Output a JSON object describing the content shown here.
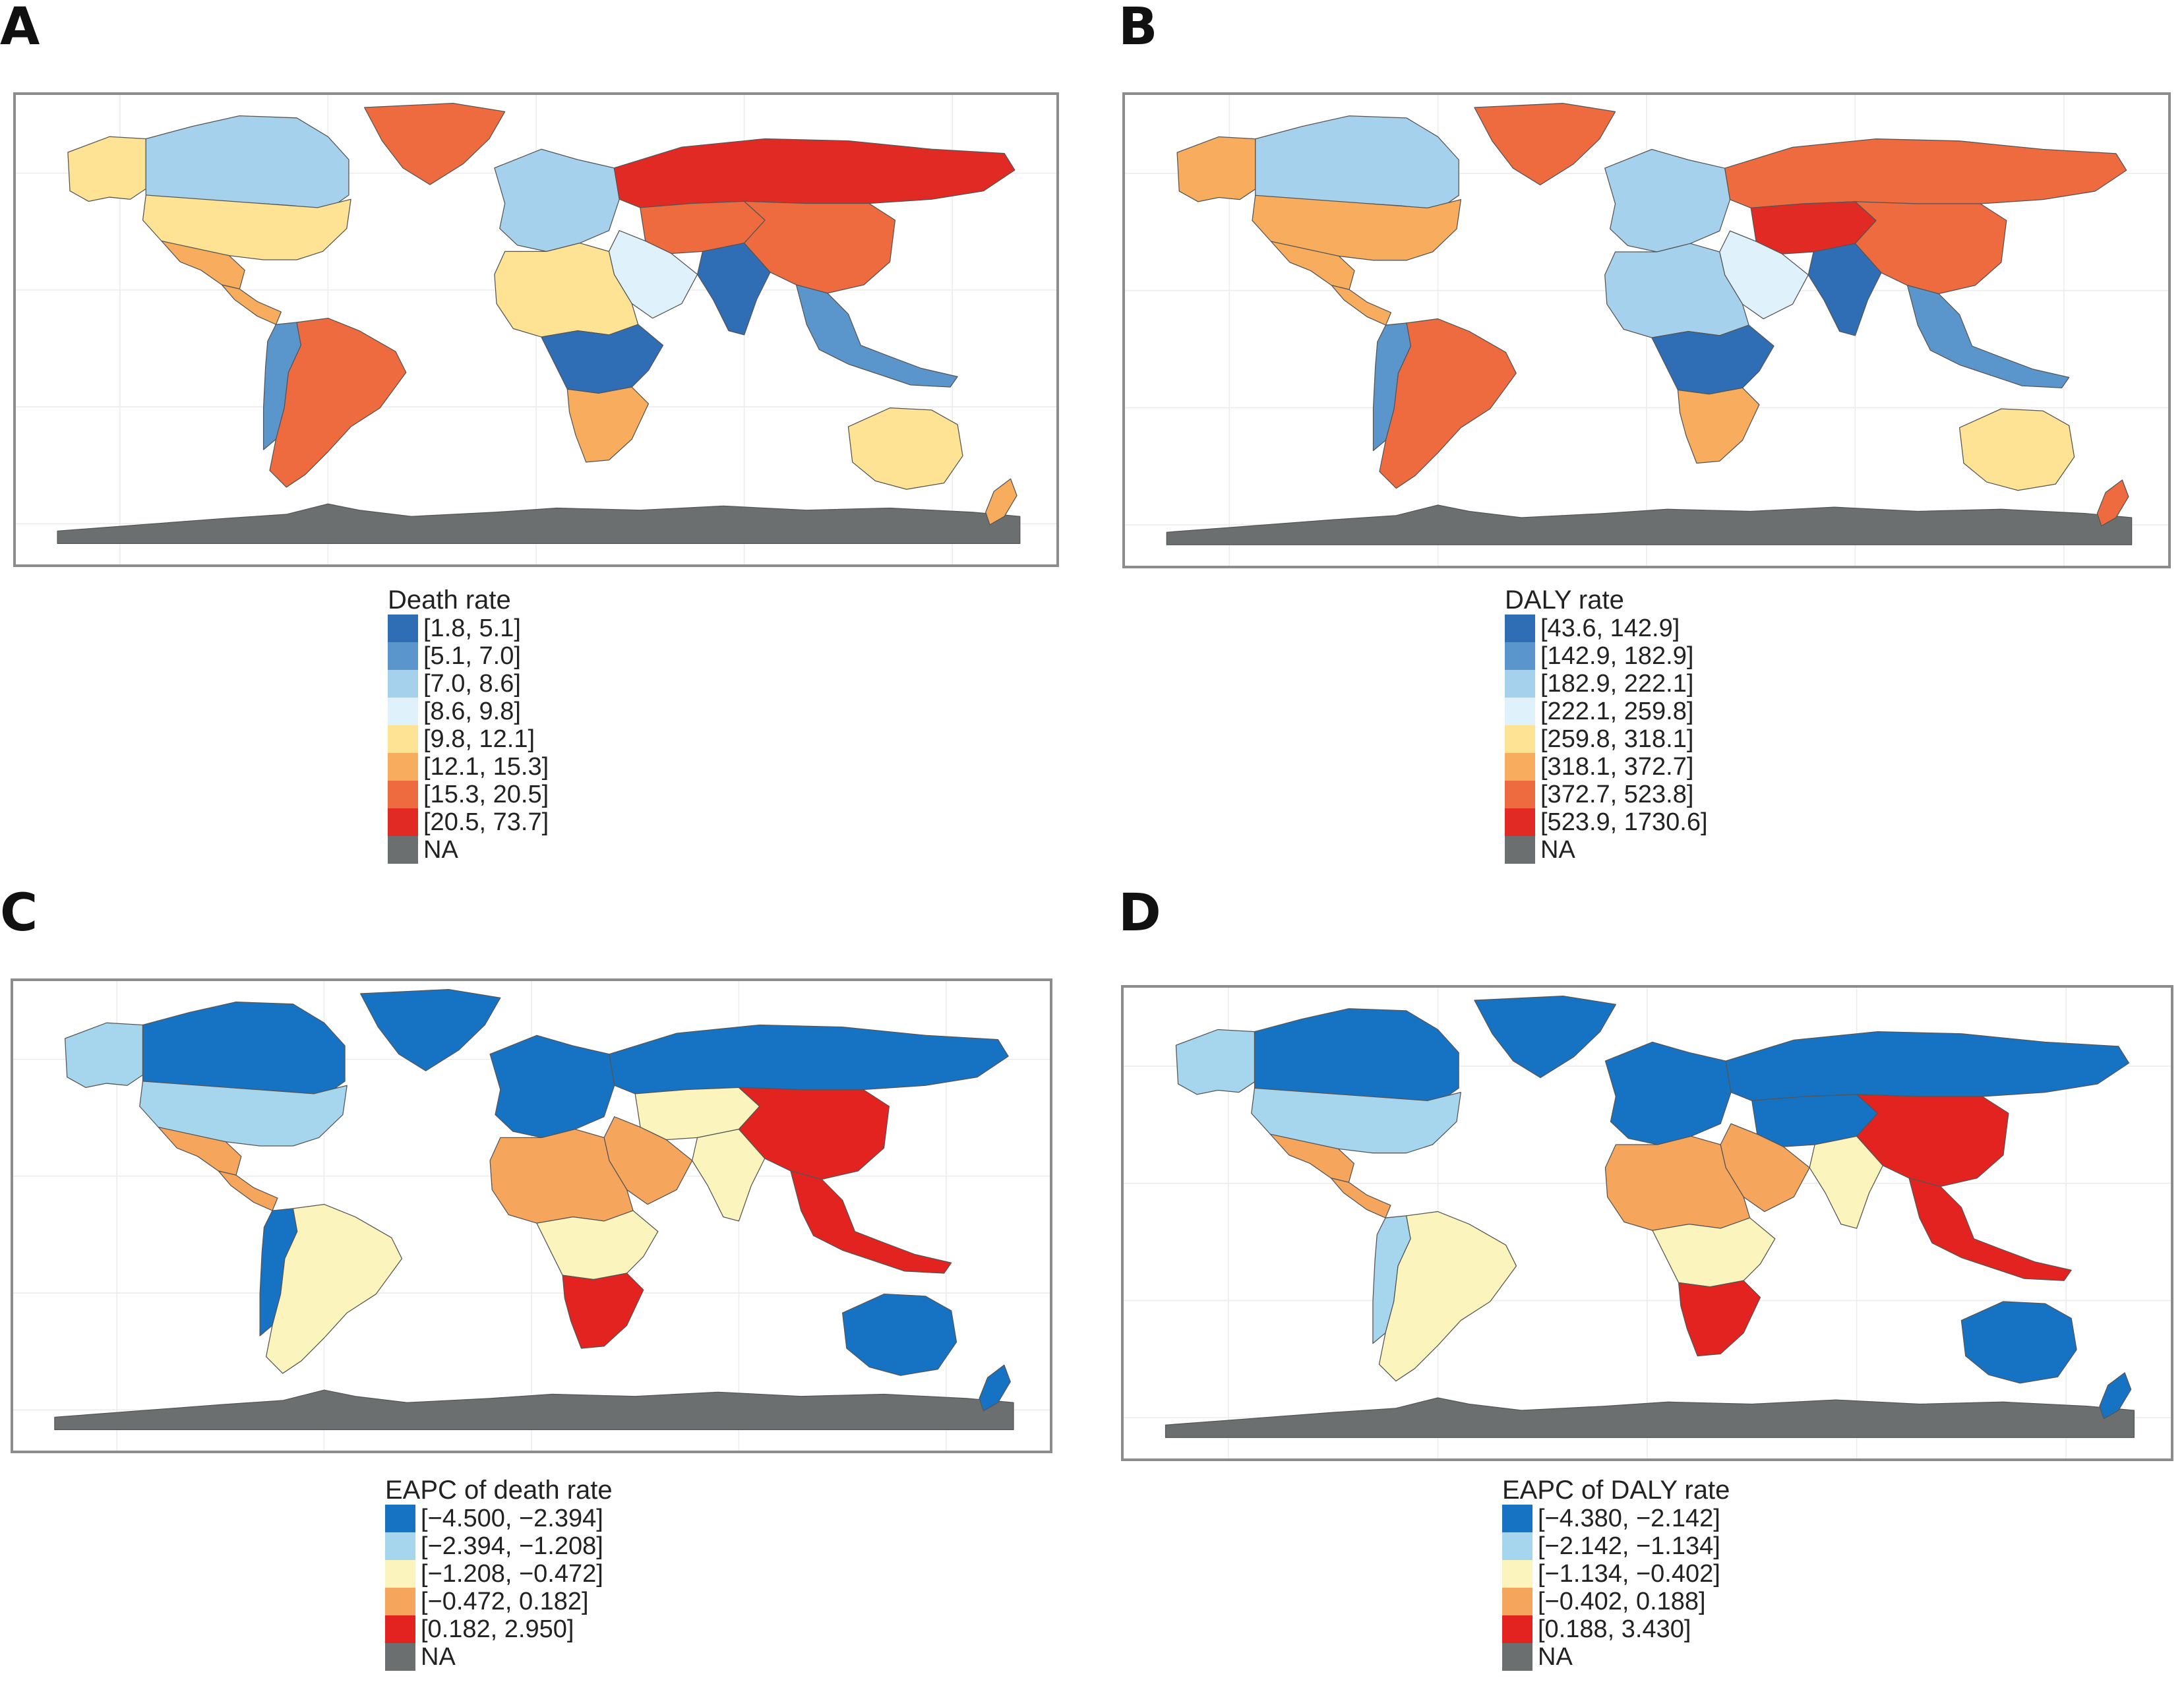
{
  "panels": [
    {
      "letter": "A",
      "legend": {
        "title": "Death rate",
        "items": [
          {
            "label": "[1.8, 5.1]",
            "color": "#2f6db5"
          },
          {
            "label": "[5.1, 7.0]",
            "color": "#5a96cc"
          },
          {
            "label": "[7.0, 8.6]",
            "color": "#a6d1ec"
          },
          {
            "label": "[8.6, 9.8]",
            "color": "#dff1fb"
          },
          {
            "label": "[9.8, 12.1]",
            "color": "#fde393"
          },
          {
            "label": "[12.1, 15.3]",
            "color": "#f8ac5e"
          },
          {
            "label": "[15.3, 20.5]",
            "color": "#ee6b40"
          },
          {
            "label": "[20.5, 73.7]",
            "color": "#e12a24"
          },
          {
            "label": "NA",
            "color": "#6c6f70"
          }
        ]
      },
      "regions": {
        "north_america": "#fde393",
        "canada": "#a6d1ec",
        "alaska": "#fde393",
        "greenland": "#ee6b40",
        "mexico": "#f8ac5e",
        "central_america": "#f8ac5e",
        "south_america": "#ee6b40",
        "andes": "#5a96cc",
        "europe": "#a6d1ec",
        "russia": "#e12a24",
        "central_asia": "#ee6b40",
        "china": "#ee6b40",
        "india": "#2f6db5",
        "middle_east": "#dff1fb",
        "southeast_asia": "#5a96cc",
        "africa_north": "#fde393",
        "africa_central": "#2f6db5",
        "africa_south": "#f8ac5e",
        "australia": "#fde393",
        "new_zealand": "#f8ac5e",
        "antarctica": "#6c6f70"
      }
    },
    {
      "letter": "B",
      "legend": {
        "title": "DALY rate",
        "items": [
          {
            "label": "[43.6, 142.9]",
            "color": "#2f6db5"
          },
          {
            "label": "[142.9, 182.9]",
            "color": "#5a96cc"
          },
          {
            "label": "[182.9, 222.1]",
            "color": "#a6d1ec"
          },
          {
            "label": "[222.1, 259.8]",
            "color": "#dff1fb"
          },
          {
            "label": "[259.8, 318.1]",
            "color": "#fde393"
          },
          {
            "label": "[318.1, 372.7]",
            "color": "#f8ac5e"
          },
          {
            "label": "[372.7, 523.8]",
            "color": "#ee6b40"
          },
          {
            "label": "[523.9, 1730.6]",
            "color": "#e12a24"
          },
          {
            "label": "NA",
            "color": "#6c6f70"
          }
        ]
      },
      "regions": {
        "north_america": "#f8ac5e",
        "canada": "#a6d1ec",
        "alaska": "#f8ac5e",
        "greenland": "#ee6b40",
        "mexico": "#f8ac5e",
        "central_america": "#f8ac5e",
        "south_america": "#ee6b40",
        "andes": "#5a96cc",
        "europe": "#a6d1ec",
        "russia": "#ee6b40",
        "central_asia": "#e12a24",
        "china": "#ee6b40",
        "india": "#2f6db5",
        "middle_east": "#dff1fb",
        "southeast_asia": "#5a96cc",
        "africa_north": "#a6d1ec",
        "africa_central": "#2f6db5",
        "africa_south": "#f8ac5e",
        "australia": "#fde393",
        "new_zealand": "#ee6b40",
        "antarctica": "#6c6f70"
      }
    },
    {
      "letter": "C",
      "legend": {
        "title": "EAPC of death rate",
        "items": [
          {
            "label": "[−4.500, −2.394]",
            "color": "#1673c4"
          },
          {
            "label": "[−2.394, −1.208]",
            "color": "#a6d6ee"
          },
          {
            "label": "[−1.208, −0.472]",
            "color": "#fcf4bd"
          },
          {
            "label": "[−0.472, 0.182]",
            "color": "#f5a55c"
          },
          {
            "label": "[0.182, 2.950]",
            "color": "#e2231f"
          },
          {
            "label": "NA",
            "color": "#6c6f70"
          }
        ]
      },
      "regions": {
        "north_america": "#a6d6ee",
        "canada": "#1673c4",
        "alaska": "#a6d6ee",
        "greenland": "#1673c4",
        "mexico": "#f5a55c",
        "central_america": "#f5a55c",
        "south_america": "#fcf4bd",
        "andes": "#1673c4",
        "europe": "#1673c4",
        "russia": "#1673c4",
        "central_asia": "#fcf4bd",
        "china": "#e2231f",
        "india": "#fcf4bd",
        "middle_east": "#f5a55c",
        "southeast_asia": "#e2231f",
        "africa_north": "#f5a55c",
        "africa_central": "#fcf4bd",
        "africa_south": "#e2231f",
        "australia": "#1673c4",
        "new_zealand": "#1673c4",
        "antarctica": "#6c6f70"
      }
    },
    {
      "letter": "D",
      "legend": {
        "title": "EAPC of DALY rate",
        "items": [
          {
            "label": "[−4.380, −2.142]",
            "color": "#1673c4"
          },
          {
            "label": "[−2.142, −1.134]",
            "color": "#a6d6ee"
          },
          {
            "label": "[−1.134, −0.402]",
            "color": "#fcf4bd"
          },
          {
            "label": "[−0.402, 0.188]",
            "color": "#f5a55c"
          },
          {
            "label": "[0.188, 3.430]",
            "color": "#e2231f"
          },
          {
            "label": "NA",
            "color": "#6c6f70"
          }
        ]
      },
      "regions": {
        "north_america": "#a6d6ee",
        "canada": "#1673c4",
        "alaska": "#a6d6ee",
        "greenland": "#1673c4",
        "mexico": "#f5a55c",
        "central_america": "#f5a55c",
        "south_america": "#fcf4bd",
        "andes": "#a6d6ee",
        "europe": "#1673c4",
        "russia": "#1673c4",
        "central_asia": "#1673c4",
        "china": "#e2231f",
        "india": "#fcf4bd",
        "middle_east": "#f5a55c",
        "southeast_asia": "#e2231f",
        "africa_north": "#f5a55c",
        "africa_central": "#fcf4bd",
        "africa_south": "#e2231f",
        "australia": "#1673c4",
        "new_zealand": "#1673c4",
        "antarctica": "#6c6f70"
      }
    }
  ]
}
